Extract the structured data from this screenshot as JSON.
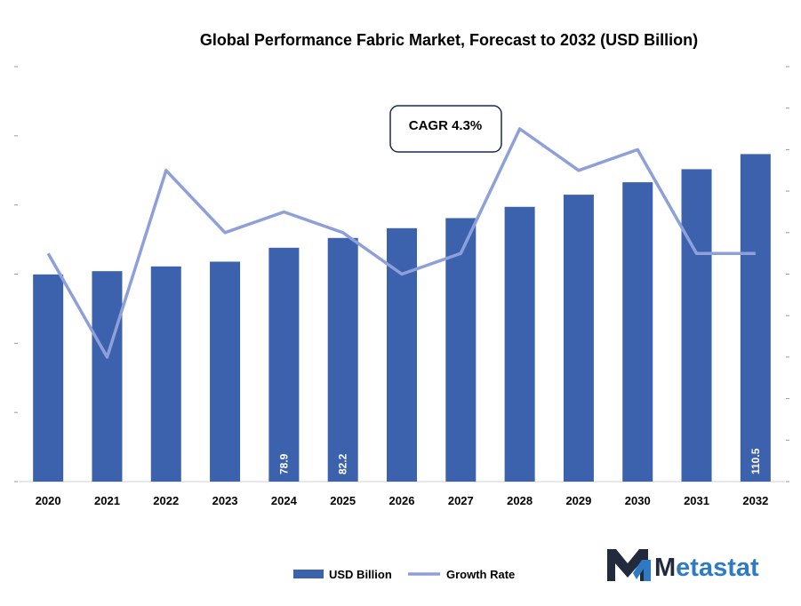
{
  "chart_data": {
    "type": "bar",
    "title": "Global Performance Fabric Market, Forecast to 2032 (USD Billion)",
    "categories": [
      "2020",
      "2021",
      "2022",
      "2023",
      "2024",
      "2025",
      "2026",
      "2027",
      "2028",
      "2029",
      "2030",
      "2031",
      "2032"
    ],
    "series": [
      {
        "name": "USD Billion",
        "type": "bar",
        "values": [
          69.9,
          71.0,
          72.6,
          74.2,
          78.9,
          82.2,
          85.5,
          88.9,
          92.7,
          96.8,
          101.0,
          105.4,
          110.5
        ]
      },
      {
        "name": "Growth Rate",
        "type": "line",
        "values": [
          4.1,
          3.6,
          4.5,
          4.2,
          4.3,
          4.2,
          4.0,
          4.1,
          4.7,
          4.5,
          4.6,
          4.1,
          4.1
        ]
      }
    ],
    "data_labels": [
      {
        "category": "2024",
        "text": "78.9"
      },
      {
        "category": "2025",
        "text": "82.2"
      },
      {
        "category": "2032",
        "text": "110.5"
      }
    ],
    "annotation": "CAGR 4.3%",
    "ylim": [
      0,
      140
    ],
    "y2lim": [
      3.0,
      5.0
    ],
    "legend_position": "bottom",
    "bar_color": "#3c62ad",
    "line_color": "#8ea0d9"
  },
  "brand": {
    "name": "Metastat",
    "colors": {
      "dark": "#222a3d",
      "accent": "#2e7bc4"
    }
  }
}
